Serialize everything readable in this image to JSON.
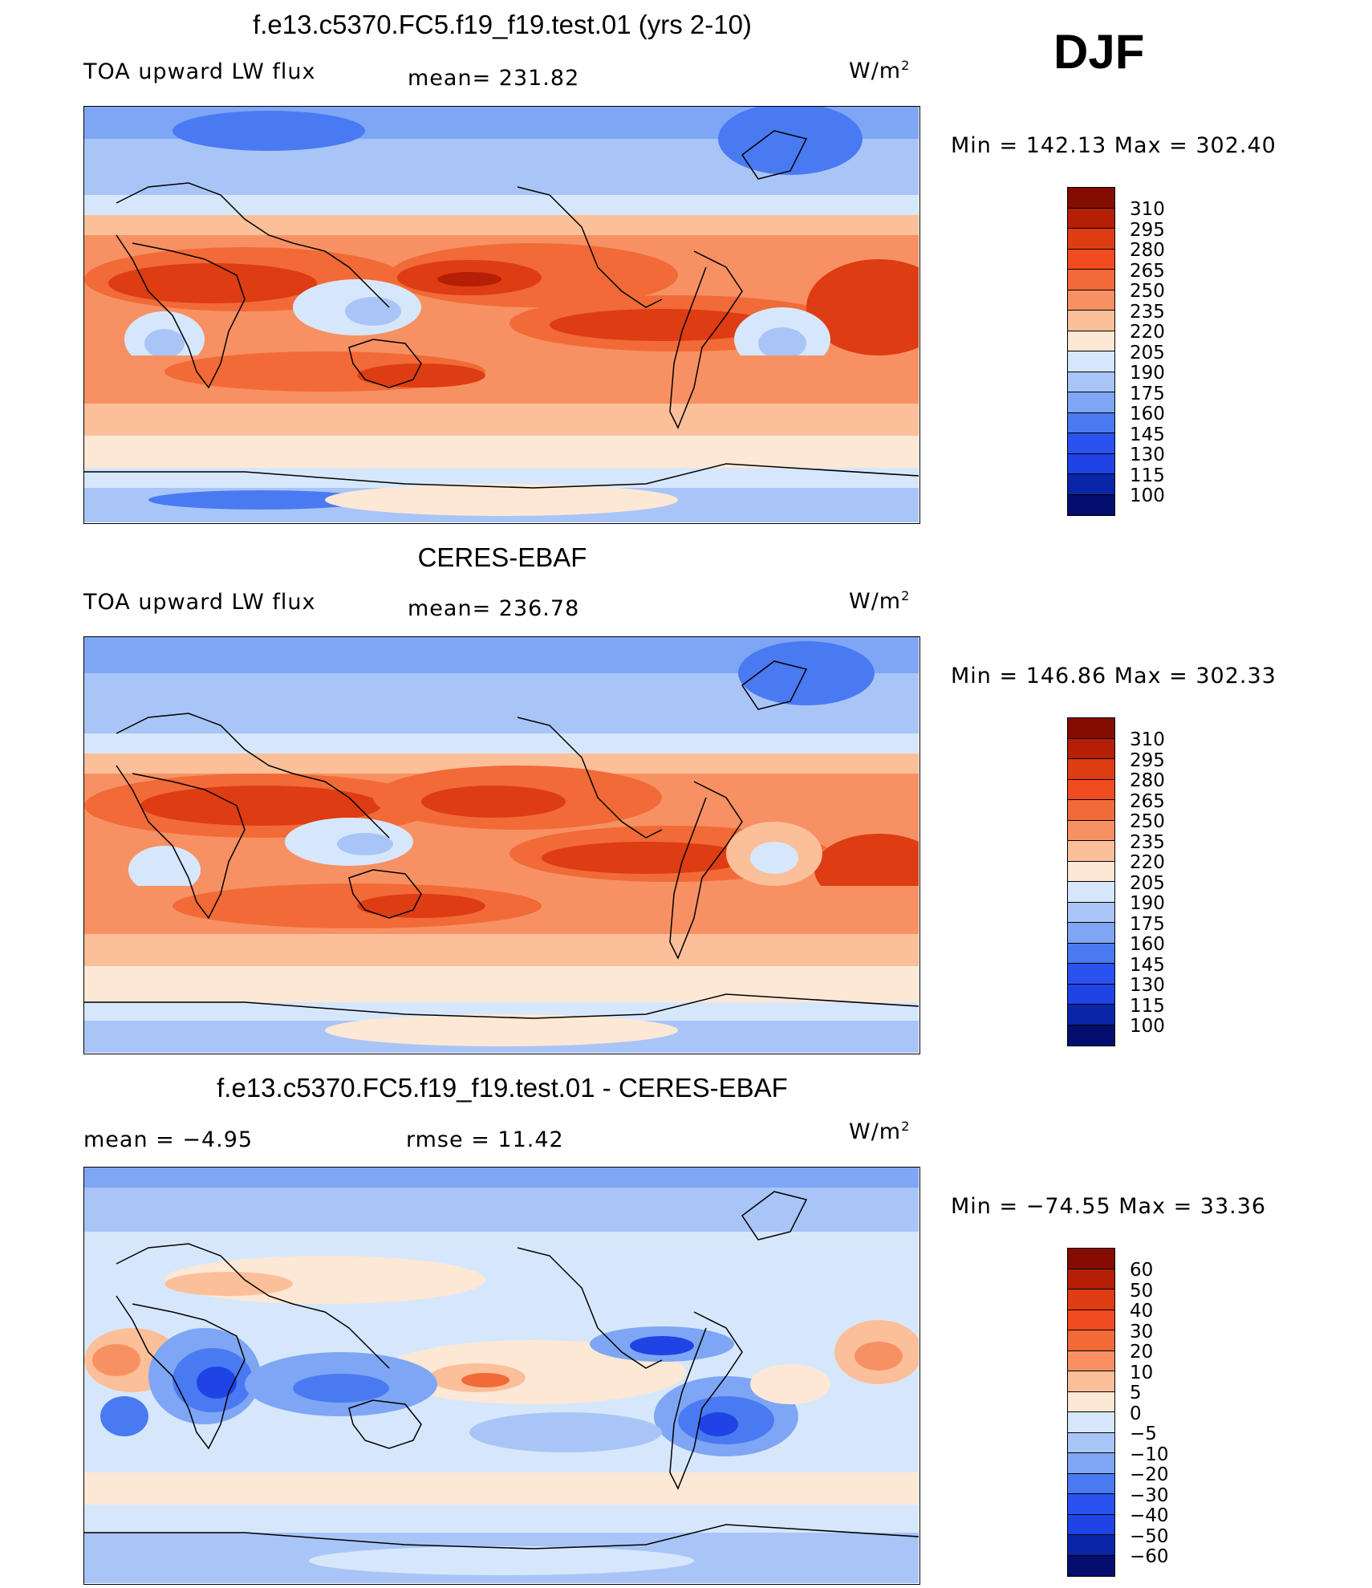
{
  "season": "DJF",
  "units": "W/m",
  "units_sup": "2",
  "colors": {
    "ocean_blue_dark": "#1f44e6",
    "blue_1": "#4a7af2",
    "blue_2": "#7ea6f5",
    "blue_3": "#a9c5f7",
    "blue_4": "#d7e7fb",
    "neutral": "#fde8d6",
    "orange_1": "#fbbf9a",
    "orange_2": "#f79163",
    "orange_3": "#f16a37",
    "red_1": "#de3c12",
    "red_2": "#b41f05",
    "red_3": "#850c00"
  },
  "panels": [
    {
      "title": "f.e13.c5370.FC5.f19_f19.test.01 (yrs 2-10)",
      "left_label": "TOA  upward  LW  flux",
      "mid_label": "mean=  231.82",
      "minmax": "Min  =  142.13  Max  =  302.40",
      "colorbar_ticks": [
        "310",
        "295",
        "280",
        "265",
        "250",
        "235",
        "220",
        "205",
        "190",
        "175",
        "160",
        "145",
        "130",
        "115",
        "100"
      ]
    },
    {
      "title": "CERES-EBAF",
      "left_label": "TOA  upward  LW  flux",
      "mid_label": "mean=  236.78",
      "minmax": "Min  =  146.86  Max  =  302.33",
      "colorbar_ticks": [
        "310",
        "295",
        "280",
        "265",
        "250",
        "235",
        "220",
        "205",
        "190",
        "175",
        "160",
        "145",
        "130",
        "115",
        "100"
      ]
    },
    {
      "title": "f.e13.c5370.FC5.f19_f19.test.01 - CERES-EBAF",
      "left_label": "mean  =    −4.95",
      "mid_label": "rmse  =    11.42",
      "minmax": "Min  =  −74.55  Max  =    33.36",
      "colorbar_ticks": [
        "60",
        "50",
        "40",
        "30",
        "20",
        "10",
        "5",
        "0",
        "−5",
        "−10",
        "−20",
        "−30",
        "−40",
        "−50",
        "−60"
      ]
    }
  ]
}
